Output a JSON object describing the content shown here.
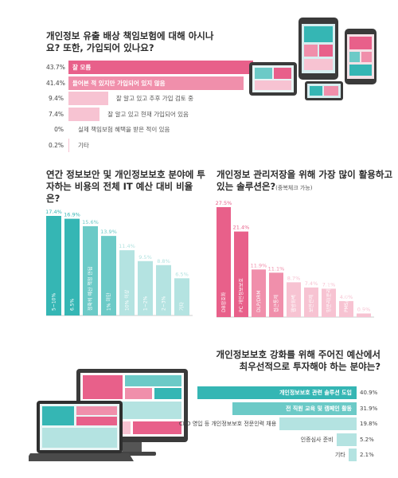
{
  "colors": {
    "pink_dark": "#e8608a",
    "pink_mid": "#f08fab",
    "pink_light": "#f7c3d2",
    "teal_dark": "#35b6b4",
    "teal_mid": "#6ccac7",
    "teal_light": "#b4e3e1"
  },
  "icons": [
    "tablet-phone-illustration-icon",
    "monitor-laptop-illustration-icon"
  ],
  "chart_data": [
    {
      "type": "bar",
      "orientation": "horizontal",
      "title": "개인정보 유출 배상 책임보험에 대해 아시나요? 또한, 가입되어 있나요?",
      "categories": [
        "잘 모름",
        "들어본 적 있지만 가입되어 있지 않음",
        "잘 알고 있고 추후 가입 검토 중",
        "잘 알고 있고 현재 가입되어 있음",
        "실제 책임보험 혜택을 받은 적이 있음",
        "기타"
      ],
      "values": [
        43.7,
        41.4,
        9.4,
        7.4,
        0,
        0.2
      ],
      "labels": [
        "43.7%",
        "41.4%",
        "9.4%",
        "7.4%",
        "0%",
        "0.2%"
      ],
      "xlim": [
        0,
        43.7
      ]
    },
    {
      "type": "bar",
      "orientation": "vertical",
      "title": "연간 정보보안 및 개인정보보호 분야에 투자하는 비용의 전체 IT 예산 대비 비율은?",
      "categories": [
        "5~10%",
        "6.5%",
        "정확히 예산 책정 안됨",
        "1% 미만",
        "10% 이상",
        "1~2%",
        "2~3%",
        "기타"
      ],
      "values": [
        17.4,
        16.9,
        15.6,
        13.9,
        11.4,
        9.5,
        8.8,
        6.5
      ],
      "labels": [
        "17.4%",
        "16.9%",
        "15.6%",
        "13.9%",
        "11.4%",
        "9.5%",
        "8.8%",
        "6.5%"
      ],
      "ylim": [
        0,
        17.4
      ]
    },
    {
      "type": "bar",
      "orientation": "vertical",
      "title": "개인정보 관리저장을 위해 가장 많이 활용하고 있는 솔루션은?",
      "title_note": "(중복체크 가능)",
      "categories": [
        "DB암호화",
        "PC 개인정보보호",
        "DLP/DRM",
        "접근통제",
        "웹방화벽",
        "보안관제",
        "망분리(분리망)",
        "PMS/ISMS 등 보안인증",
        "기타"
      ],
      "values": [
        27.5,
        21.4,
        11.9,
        11.1,
        8.7,
        7.4,
        7.1,
        4.0,
        0.9
      ],
      "labels": [
        "27.5%",
        "21.4%",
        "11.9%",
        "11.1%",
        "8.7%",
        "7.4%",
        "7.1%",
        "4.0%",
        "0.9%"
      ],
      "ylim": [
        0,
        27.5
      ]
    },
    {
      "type": "bar",
      "orientation": "horizontal",
      "title": "개인정보보호 강화를 위해 주어진 예산에서 최우선적으로 투자해야 하는 분야는?",
      "categories": [
        "개인정보보호 관련 솔루션 도입",
        "전 직원 교육 및 캠페인 활동",
        "CPO 영입 등 개인정보보호 전문인력 채용",
        "인증심사 준비",
        "기타"
      ],
      "values": [
        40.9,
        31.9,
        19.8,
        5.2,
        2.1
      ],
      "labels": [
        "40.9%",
        "31.9%",
        "19.8%",
        "5.2%",
        "2.1%"
      ],
      "xlim": [
        0,
        40.9
      ]
    }
  ]
}
